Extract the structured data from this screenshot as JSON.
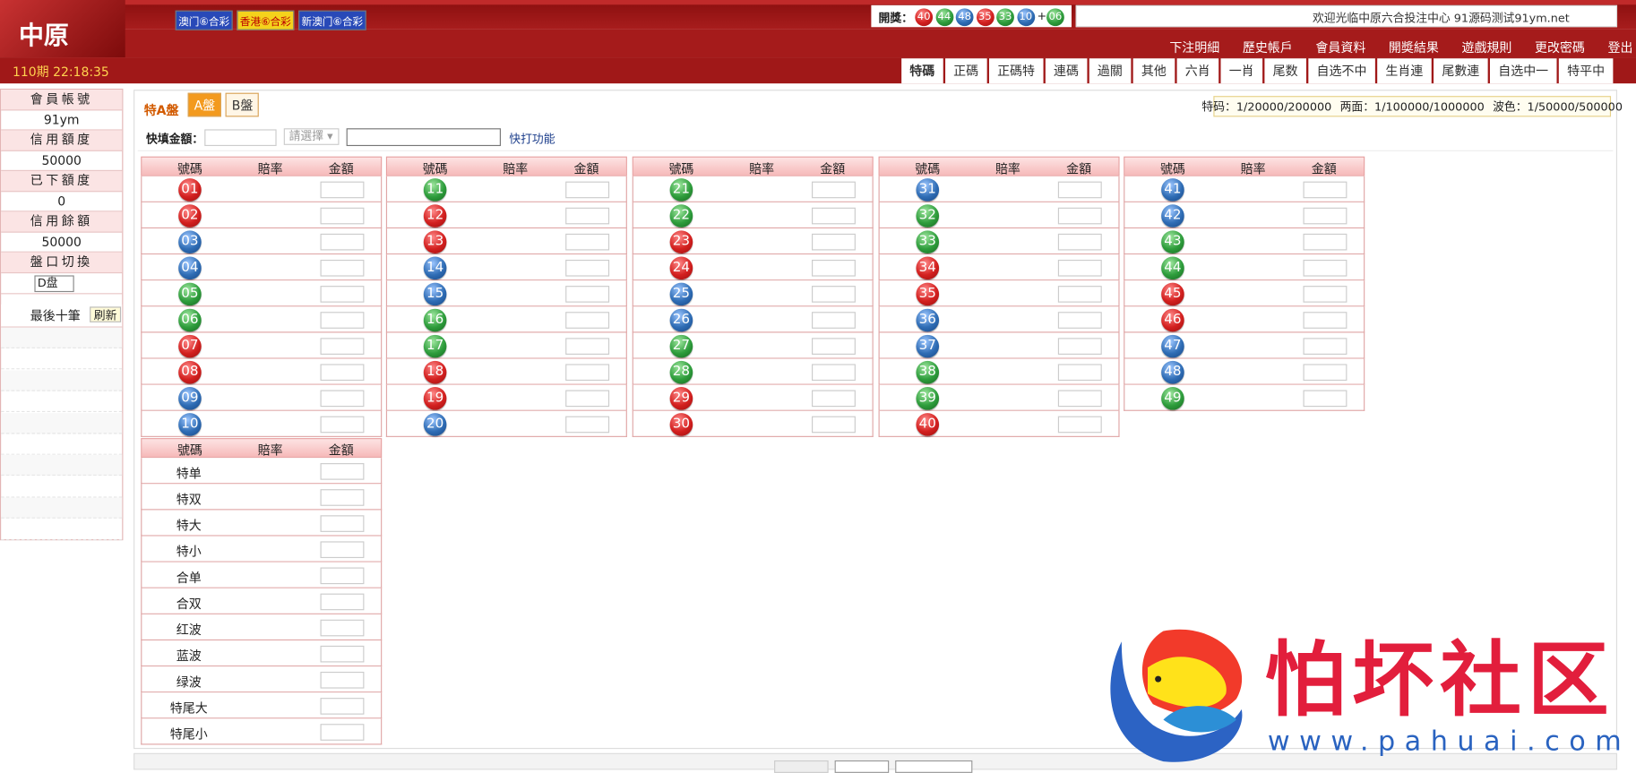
{
  "header": {
    "logo": "中原",
    "lottery_tabs": [
      "澳门⑥合彩",
      "香港⑥合彩",
      "新澳门⑥合彩"
    ],
    "draw_label": "開獎：",
    "draw_balls": [
      {
        "number": "40",
        "color": "red"
      },
      {
        "number": "44",
        "color": "green"
      },
      {
        "number": "48",
        "color": "blue"
      },
      {
        "number": "35",
        "color": "red"
      },
      {
        "number": "33",
        "color": "green"
      },
      {
        "number": "10",
        "color": "blue"
      }
    ],
    "plus": "+",
    "special_ball": {
      "number": "06",
      "color": "green"
    },
    "welcome": "欢迎光临中原六合投注中心 91源码测试91ym.net",
    "links": [
      "下注明細",
      "歷史帳戶",
      "會員資料",
      "開奬結果",
      "遊戲規則",
      "更改密碼",
      "登出"
    ],
    "period": "110期 22:18:35",
    "game_tabs": [
      "特碼",
      "正碼",
      "正碼特",
      "連碼",
      "過關",
      "其他",
      "六肖",
      "一肖",
      "尾数",
      "自选不中",
      "生肖連",
      "尾數連",
      "自选中一",
      "特平中"
    ]
  },
  "sidebar": {
    "fields": [
      {
        "label": "會員帳號",
        "value": "91ym"
      },
      {
        "label": "信用額度",
        "value": "50000"
      },
      {
        "label": "已下額度",
        "value": "0"
      },
      {
        "label": "信用餘額",
        "value": "50000"
      }
    ],
    "handicap_label": "盤口切換",
    "handicap_option": "D盘",
    "recent_label": "最後十筆",
    "refresh": "刷新"
  },
  "main": {
    "title": "特A盤",
    "plate_tabs": [
      "A盤",
      "B盤"
    ],
    "odds": [
      "特码：1/20000/200000",
      "两面：1/100000/1000000",
      "波色：1/50000/500000"
    ],
    "quick_fill_label": "快填金額：",
    "select_placeholder": "請選擇",
    "quick_link": "快打功能",
    "columns": [
      "號碼",
      "賠率",
      "金額"
    ],
    "numbers": [
      {
        "label": "01",
        "color": "red"
      },
      {
        "label": "02",
        "color": "red"
      },
      {
        "label": "03",
        "color": "blue"
      },
      {
        "label": "04",
        "color": "blue"
      },
      {
        "label": "05",
        "color": "green"
      },
      {
        "label": "06",
        "color": "green"
      },
      {
        "label": "07",
        "color": "red"
      },
      {
        "label": "08",
        "color": "red"
      },
      {
        "label": "09",
        "color": "blue"
      },
      {
        "label": "10",
        "color": "blue"
      },
      {
        "label": "11",
        "color": "green"
      },
      {
        "label": "12",
        "color": "red"
      },
      {
        "label": "13",
        "color": "red"
      },
      {
        "label": "14",
        "color": "blue"
      },
      {
        "label": "15",
        "color": "blue"
      },
      {
        "label": "16",
        "color": "green"
      },
      {
        "label": "17",
        "color": "green"
      },
      {
        "label": "18",
        "color": "red"
      },
      {
        "label": "19",
        "color": "red"
      },
      {
        "label": "20",
        "color": "blue"
      },
      {
        "label": "21",
        "color": "green"
      },
      {
        "label": "22",
        "color": "green"
      },
      {
        "label": "23",
        "color": "red"
      },
      {
        "label": "24",
        "color": "red"
      },
      {
        "label": "25",
        "color": "blue"
      },
      {
        "label": "26",
        "color": "blue"
      },
      {
        "label": "27",
        "color": "green"
      },
      {
        "label": "28",
        "color": "green"
      },
      {
        "label": "29",
        "color": "red"
      },
      {
        "label": "30",
        "color": "red"
      },
      {
        "label": "31",
        "color": "blue"
      },
      {
        "label": "32",
        "color": "green"
      },
      {
        "label": "33",
        "color": "green"
      },
      {
        "label": "34",
        "color": "red"
      },
      {
        "label": "35",
        "color": "red"
      },
      {
        "label": "36",
        "color": "blue"
      },
      {
        "label": "37",
        "color": "blue"
      },
      {
        "label": "38",
        "color": "green"
      },
      {
        "label": "39",
        "color": "green"
      },
      {
        "label": "40",
        "color": "red"
      },
      {
        "label": "41",
        "color": "blue"
      },
      {
        "label": "42",
        "color": "blue"
      },
      {
        "label": "43",
        "color": "green"
      },
      {
        "label": "44",
        "color": "green"
      },
      {
        "label": "45",
        "color": "red"
      },
      {
        "label": "46",
        "color": "red"
      },
      {
        "label": "47",
        "color": "blue"
      },
      {
        "label": "48",
        "color": "blue"
      },
      {
        "label": "49",
        "color": "green"
      }
    ],
    "side_items": [
      "特单",
      "特双",
      "特大",
      "特小",
      "合单",
      "合双",
      "红波",
      "蓝波",
      "绿波",
      "特尾大",
      "特尾小"
    ]
  },
  "watermark": {
    "title": "怕坏社区",
    "url": "www.pahuai.com"
  }
}
